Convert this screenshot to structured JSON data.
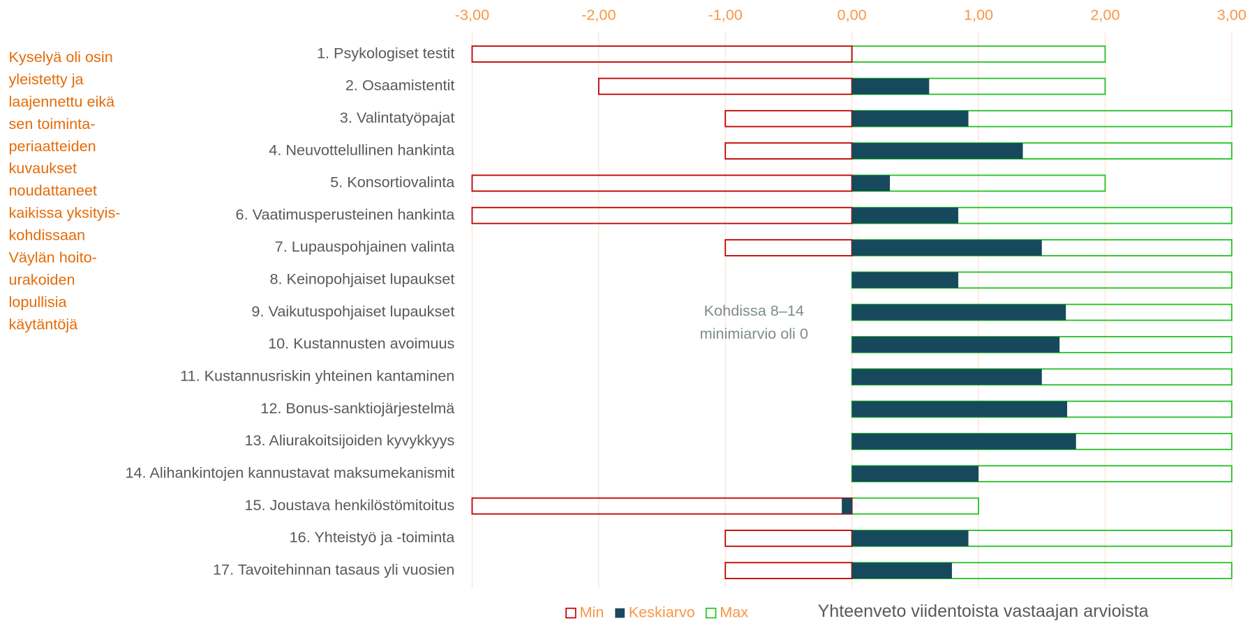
{
  "chart_data": {
    "type": "bar",
    "orientation": "horizontal",
    "categories": [
      "1. Psykologiset testit",
      "2. Osaamistentit",
      "3. Valintatyöpajat",
      "4. Neuvottelullinen hankinta",
      "5. Konsortiovalinta",
      "6. Vaatimusperusteinen hankinta",
      "7. Lupauspohjainen valinta",
      "8. Keinopohjaiset lupaukset",
      "9. Vaikutuspohjaiset lupaukset",
      "10. Kustannusten avoimuus",
      "11. Kustannusriskin yhteinen kantaminen",
      "12. Bonus-sanktiojärjestelmä",
      "13. Aliurakoitsijoiden kyvykkyys",
      "14. Alihankintojen kannustavat maksumekanismit",
      "15. Joustava henkilöstömitoitus",
      "16. Yhteistyö ja -toiminta",
      "17. Tavoitehinnan tasaus yli vuosien"
    ],
    "series": [
      {
        "name": "Min",
        "color": "#c00000",
        "style": "outline",
        "values": [
          -3,
          -2,
          -1,
          -1,
          -3,
          -3,
          -1,
          0,
          0,
          0,
          0,
          0,
          0,
          0,
          -3,
          -1,
          -1
        ]
      },
      {
        "name": "Keskiarvo",
        "color": "#17495d",
        "style": "filled",
        "values": [
          0,
          0.61,
          0.92,
          1.35,
          0.3,
          0.84,
          1.5,
          0.84,
          1.69,
          1.64,
          1.5,
          1.7,
          1.77,
          1.0,
          -0.08,
          0.92,
          0.79
        ]
      },
      {
        "name": "Max",
        "color": "#22c322",
        "style": "outline",
        "values": [
          2,
          2,
          3,
          3,
          2,
          3,
          3,
          3,
          3,
          3,
          3,
          3,
          3,
          3,
          1,
          3,
          3
        ]
      }
    ],
    "xlim": [
      -3,
      3
    ],
    "xticks": [
      {
        "value": -3,
        "label": "-3,00"
      },
      {
        "value": -2,
        "label": "-2,00"
      },
      {
        "value": -1,
        "label": "-1,00"
      },
      {
        "value": 0,
        "label": "0,00"
      },
      {
        "value": 1,
        "label": "1,00"
      },
      {
        "value": 2,
        "label": "2,00"
      },
      {
        "value": 3,
        "label": "3,00"
      }
    ],
    "grid": true,
    "legend": "bottom",
    "side_note": [
      "Kyselyä oli osin",
      "yleistetty ja",
      "laajennettu eikä",
      "sen toiminta-",
      "periaatteiden",
      "kuvaukset",
      "noudattaneet",
      "kaikissa yksityis-",
      "kohdissaan",
      "Väylän hoito-",
      "urakoiden",
      "lopullisia",
      "käytäntöjä"
    ],
    "center_note": [
      "Kohdissa 8–14",
      "minimiarvio oli 0"
    ],
    "footer": "Yhteenveto viidentoista vastaajan arvioista"
  }
}
